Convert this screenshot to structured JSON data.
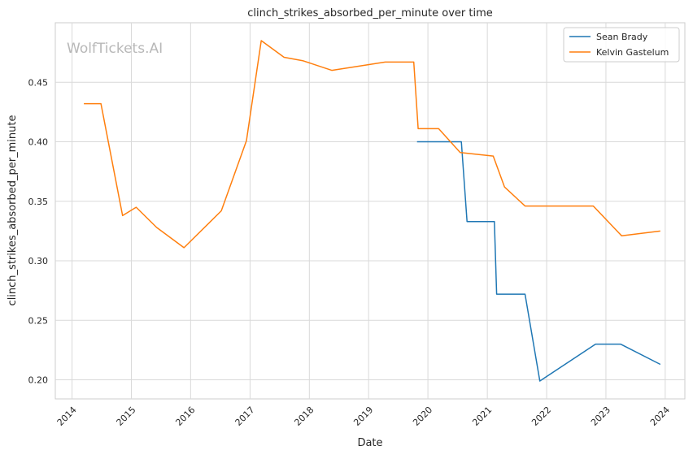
{
  "chart_data": {
    "type": "line",
    "title": "clinch_strikes_absorbed_per_minute over time",
    "xlabel": "Date",
    "ylabel": "clinch_strikes_absorbed_per_minute",
    "watermark": "WolfTickets.AI",
    "x_ticks": [
      "2014",
      "2015",
      "2016",
      "2017",
      "2018",
      "2019",
      "2020",
      "2021",
      "2022",
      "2023",
      "2024"
    ],
    "y_ticks": [
      "0.20",
      "0.25",
      "0.30",
      "0.35",
      "0.40",
      "0.45"
    ],
    "xlim": [
      "2013-09-20",
      "2024-05-01"
    ],
    "ylim": [
      0.184,
      0.5
    ],
    "grid": true,
    "legend_position": "top-right",
    "series": [
      {
        "name": "Sean Brady",
        "color": "#1f77b4",
        "points": [
          [
            "2019-10-26",
            0.4
          ],
          [
            "2020-07-25",
            0.4
          ],
          [
            "2020-08-29",
            0.333
          ],
          [
            "2021-02-13",
            0.333
          ],
          [
            "2021-02-27",
            0.272
          ],
          [
            "2021-08-21",
            0.272
          ],
          [
            "2021-11-20",
            0.199
          ],
          [
            "2022-10-29",
            0.23
          ],
          [
            "2023-04-01",
            0.23
          ],
          [
            "2023-12-02",
            0.213
          ]
        ]
      },
      {
        "name": "Kelvin Gastelum",
        "color": "#ff7f0e",
        "points": [
          [
            "2014-03-15",
            0.432
          ],
          [
            "2014-06-28",
            0.432
          ],
          [
            "2014-11-08",
            0.338
          ],
          [
            "2015-01-31",
            0.345
          ],
          [
            "2015-06-06",
            0.328
          ],
          [
            "2015-11-21",
            0.311
          ],
          [
            "2016-07-08",
            0.342
          ],
          [
            "2016-12-10",
            0.401
          ],
          [
            "2017-03-11",
            0.485
          ],
          [
            "2017-07-29",
            0.471
          ],
          [
            "2017-11-25",
            0.468
          ],
          [
            "2018-05-19",
            0.46
          ],
          [
            "2019-04-13",
            0.467
          ],
          [
            "2019-10-06",
            0.467
          ],
          [
            "2019-11-02",
            0.411
          ],
          [
            "2020-03-07",
            0.411
          ],
          [
            "2020-07-18",
            0.391
          ],
          [
            "2021-02-06",
            0.388
          ],
          [
            "2021-04-17",
            0.362
          ],
          [
            "2021-08-21",
            0.346
          ],
          [
            "2022-10-15",
            0.346
          ],
          [
            "2023-04-08",
            0.321
          ],
          [
            "2023-12-02",
            0.325
          ]
        ]
      }
    ]
  }
}
